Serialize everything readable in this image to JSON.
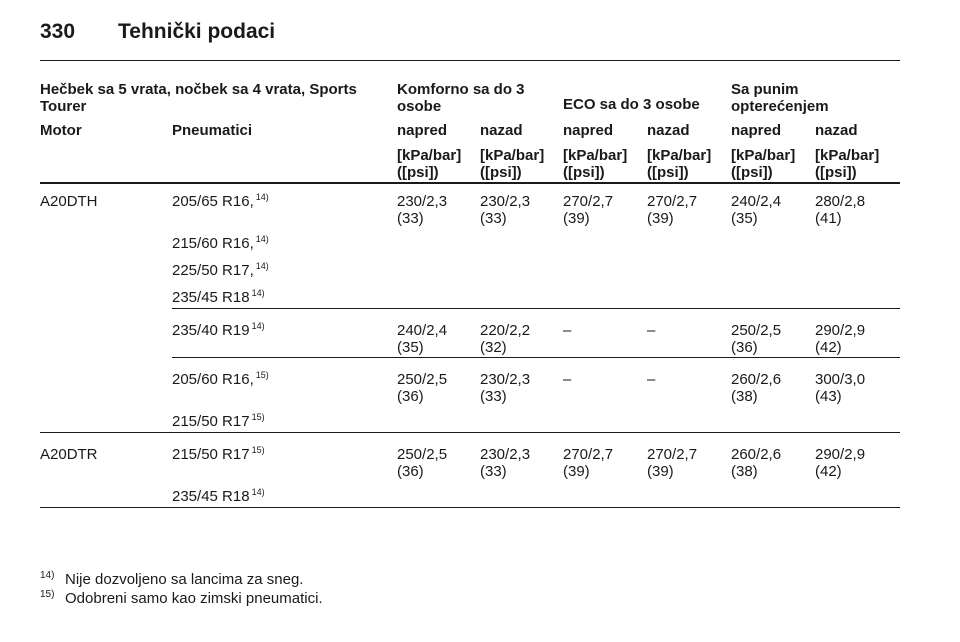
{
  "header": {
    "page_number": "330",
    "title": "Tehnički podaci"
  },
  "table": {
    "group_header": [
      "Hečbek sa 5 vrata, nočbek sa 4 vrata, Sports Tourer",
      "Komforno sa do 3 osobe",
      "ECO sa do 3 osobe",
      "Sa punim opterećenjem"
    ],
    "columns": [
      "Motor",
      "Pneumatici",
      "napred",
      "nazad",
      "napred",
      "nazad",
      "napred",
      "nazad"
    ],
    "units": [
      "[kPa/bar] ([psi])",
      "[kPa/bar] ([psi])",
      "[kPa/bar] ([psi])",
      "[kPa/bar] ([psi])",
      "[kPa/bar] ([psi])",
      "[kPa/bar] ([psi])"
    ],
    "groups": [
      {
        "engine": "A20DTH",
        "blocks": [
          {
            "tires": [
              {
                "size": "205/65 R16,",
                "ref": "14)"
              },
              {
                "size": "215/60 R16,",
                "ref": "14)"
              },
              {
                "size": "225/50 R17,",
                "ref": "14)"
              },
              {
                "size": "235/45 R18",
                "ref": "14)"
              }
            ],
            "values": [
              [
                "230/2,3",
                "(33)"
              ],
              [
                "230/2,3",
                "(33)"
              ],
              [
                "270/2,7",
                "(39)"
              ],
              [
                "270/2,7",
                "(39)"
              ],
              [
                "240/2,4",
                "(35)"
              ],
              [
                "280/2,8",
                "(41)"
              ]
            ]
          },
          {
            "tires": [
              {
                "size": "235/40 R19",
                "ref": "14)"
              }
            ],
            "values": [
              [
                "240/2,4",
                "(35)"
              ],
              [
                "220/2,2",
                "(32)"
              ],
              [
                "–"
              ],
              [
                "–"
              ],
              [
                "250/2,5",
                "(36)"
              ],
              [
                "290/2,9",
                "(42)"
              ]
            ]
          },
          {
            "tires": [
              {
                "size": "205/60 R16,",
                "ref": "15)"
              },
              {
                "size": "215/50 R17",
                "ref": "15)"
              }
            ],
            "values": [
              [
                "250/2,5",
                "(36)"
              ],
              [
                "230/2,3",
                "(33)"
              ],
              [
                "–"
              ],
              [
                "–"
              ],
              [
                "260/2,6",
                "(38)"
              ],
              [
                "300/3,0",
                "(43)"
              ]
            ]
          }
        ]
      },
      {
        "engine": "A20DTR",
        "blocks": [
          {
            "tires": [
              {
                "size": "215/50 R17",
                "ref": "15)"
              },
              {
                "size": "235/45 R18",
                "ref": "14)"
              }
            ],
            "values": [
              [
                "250/2,5",
                "(36)"
              ],
              [
                "230/2,3",
                "(33)"
              ],
              [
                "270/2,7",
                "(39)"
              ],
              [
                "270/2,7",
                "(39)"
              ],
              [
                "260/2,6",
                "(38)"
              ],
              [
                "290/2,9",
                "(42)"
              ]
            ]
          }
        ]
      }
    ]
  },
  "footnotes": [
    {
      "ref": "14)",
      "text": "Nije dozvoljeno sa lancima za sneg."
    },
    {
      "ref": "15)",
      "text": "Odobreni samo kao zimski pneumatici."
    }
  ]
}
